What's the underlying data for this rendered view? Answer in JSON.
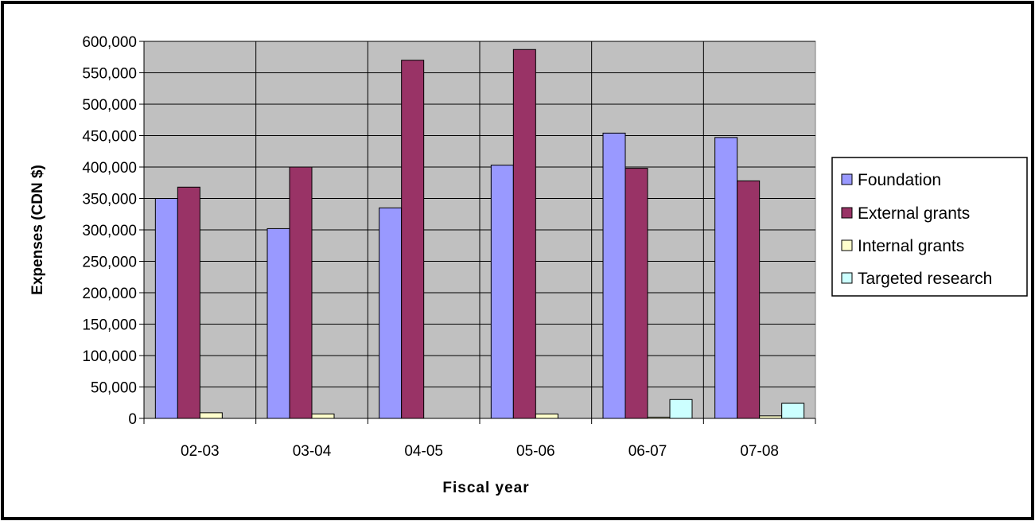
{
  "chart_data": {
    "type": "bar",
    "xlabel": "Fiscal year",
    "ylabel": "Expenses (CDN $)",
    "categories": [
      "02-03",
      "03-04",
      "04-05",
      "05-06",
      "06-07",
      "07-08"
    ],
    "ylim": [
      0,
      600000
    ],
    "yticks": [
      0,
      50000,
      100000,
      150000,
      200000,
      250000,
      300000,
      350000,
      400000,
      450000,
      500000,
      550000,
      600000
    ],
    "ytick_labels": [
      "0",
      "50,000",
      "100,000",
      "150,000",
      "200,000",
      "250,000",
      "300,000",
      "350,000",
      "400,000",
      "450,000",
      "500,000",
      "550,000",
      "600,000"
    ],
    "grid": true,
    "legend_position": "right",
    "background_color": "#c0c0c0",
    "series": [
      {
        "name": "Foundation",
        "color": "#9999ff",
        "values": [
          350000,
          302000,
          335000,
          403000,
          454000,
          447000
        ]
      },
      {
        "name": "External grants",
        "color": "#993366",
        "values": [
          368000,
          400000,
          570000,
          587000,
          398000,
          378000
        ]
      },
      {
        "name": "Internal grants",
        "color": "#ffffcc",
        "values": [
          9000,
          7000,
          0,
          7000,
          2000,
          4000
        ]
      },
      {
        "name": "Targeted research",
        "color": "#ccffff",
        "values": [
          0,
          0,
          0,
          0,
          30000,
          24000
        ]
      }
    ]
  }
}
